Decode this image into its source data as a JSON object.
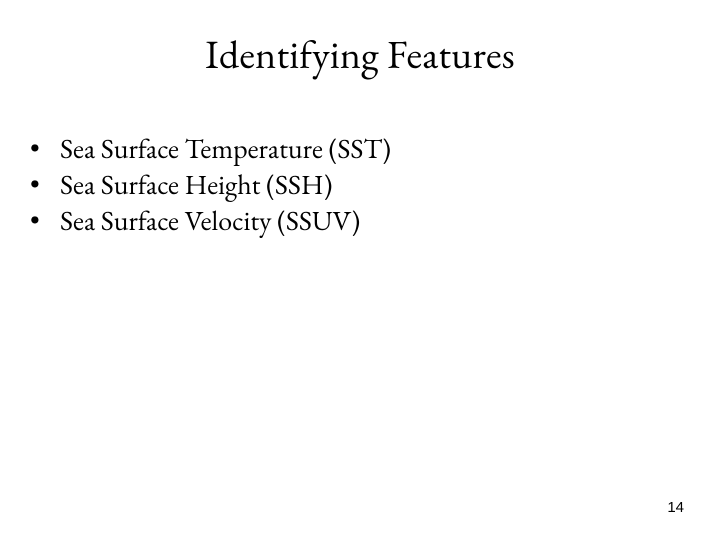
{
  "slide": {
    "title": "Identifying Features",
    "title_fontsize": 40,
    "bullets": [
      "Sea Surface Temperature (SST)",
      "Sea Surface Height (SSH)",
      "Sea Surface Velocity (SSUV)"
    ],
    "bullet_fontsize": 28,
    "bullet_marker": "•",
    "page_number": "14",
    "background_color": "#ffffff",
    "text_color": "#000000"
  }
}
